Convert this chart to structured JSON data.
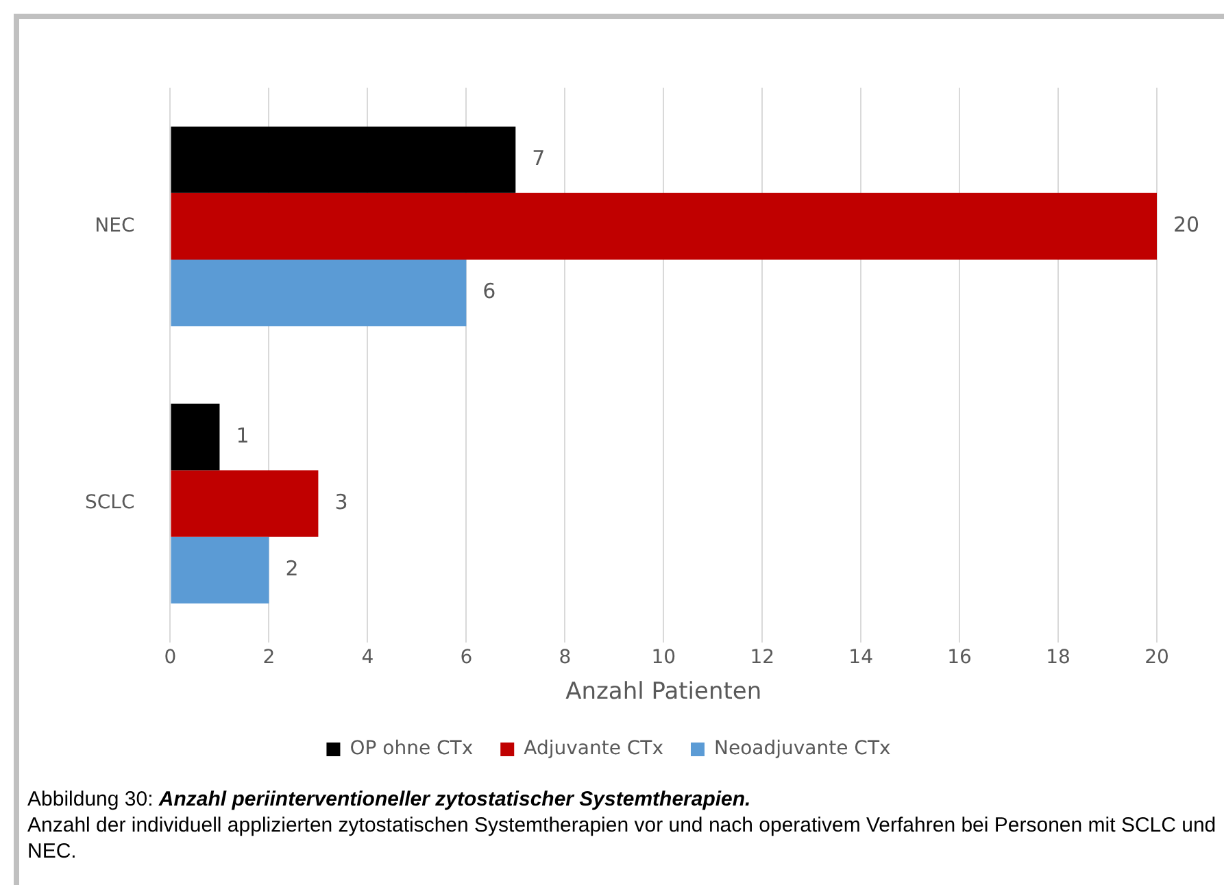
{
  "chart_data": {
    "type": "bar",
    "orientation": "horizontal",
    "categories": [
      "NEC",
      "SCLC"
    ],
    "series": [
      {
        "name": "OP ohne CTx",
        "color": "#000000",
        "values": [
          7,
          1
        ]
      },
      {
        "name": "Adjuvante CTx",
        "color": "#c00000",
        "values": [
          20,
          3
        ]
      },
      {
        "name": "Neoadjuvante CTx",
        "color": "#5b9bd5",
        "values": [
          6,
          2
        ]
      }
    ],
    "xlim": [
      0,
      20
    ],
    "xticks": [
      0,
      2,
      4,
      6,
      8,
      10,
      12,
      14,
      16,
      18,
      20
    ],
    "xlabel": "Anzahl Patienten",
    "grid": "x",
    "legend": "bottom",
    "data_labels": true,
    "annotations": [
      "Abbildung 30:",
      "Anzahl periinterventioneller zytostatischer Systemtherapien.",
      "Anzahl der individuell applizierten zytostatischen Systemtherapien vor und nach operativem Verfahren bei Personen mit SCLC und NEC."
    ]
  }
}
